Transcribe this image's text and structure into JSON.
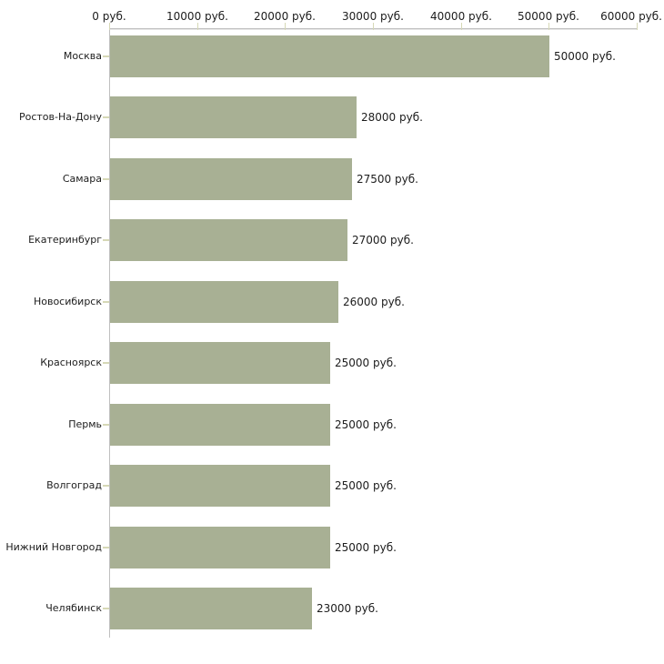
{
  "chart_data": {
    "type": "bar",
    "orientation": "horizontal",
    "title": "",
    "categories": [
      "Москва",
      "Ростов-На-Дону",
      "Самара",
      "Екатеринбург",
      "Новосибирск",
      "Красноярск",
      "Пермь",
      "Волгоград",
      "Нижний Новгород",
      "Челябинск"
    ],
    "values": [
      50000,
      28000,
      27500,
      27000,
      26000,
      25000,
      25000,
      25000,
      25000,
      23000
    ],
    "value_labels": [
      "50000 руб.",
      "28000 руб.",
      "27500 руб.",
      "27000 руб.",
      "26000 руб.",
      "25000 руб.",
      "25000 руб.",
      "25000 руб.",
      "25000 руб.",
      "23000 руб."
    ],
    "x_axis": {
      "position": "top",
      "xlim": [
        0,
        60000
      ],
      "ticks": [
        0,
        10000,
        20000,
        30000,
        40000,
        50000,
        60000
      ],
      "tick_labels": [
        "0 руб.",
        "10000 руб.",
        "20000 руб.",
        "30000 руб.",
        "40000 руб.",
        "50000 руб.",
        "60000 руб."
      ],
      "unit": "руб."
    },
    "grid": false,
    "legend": false,
    "colors": {
      "bar": "#a8b094",
      "axis_line": "#bfbfbf",
      "axis_line_light": "#e6e6e6",
      "tick": "#d6d8b6",
      "text": "#1c1c1c"
    }
  }
}
